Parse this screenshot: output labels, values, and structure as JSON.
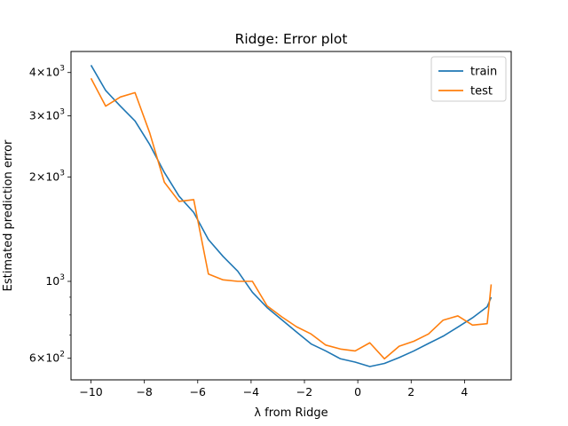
{
  "chart_data": {
    "type": "line",
    "title": "Ridge: Error plot",
    "xlabel": "λ from Ridge",
    "ylabel": "Estimated prediction error",
    "xlim": [
      -10.75,
      5.75
    ],
    "ylim": [
      520,
      4600
    ],
    "yscale": "log",
    "grid": false,
    "legend_position": "top-right",
    "x_ticks": [
      -10,
      -8,
      -6,
      -4,
      -2,
      0,
      2,
      4
    ],
    "x_tick_labels": [
      "−10",
      "−8",
      "−6",
      "−4",
      "−2",
      "0",
      "2",
      "4"
    ],
    "y_major_ticks": [
      {
        "value": 1000,
        "base": "10",
        "exp": "3",
        "coef": ""
      },
      {
        "value": 2000,
        "base": "10",
        "exp": "3",
        "coef": "2"
      },
      {
        "value": 3000,
        "base": "10",
        "exp": "3",
        "coef": "3"
      },
      {
        "value": 4000,
        "base": "10",
        "exp": "3",
        "coef": "4"
      },
      {
        "value": 600,
        "base": "10",
        "exp": "2",
        "coef": "6"
      }
    ],
    "y_minor_ticks": [
      700,
      800,
      900
    ],
    "x": [
      -10.0,
      -9.45,
      -8.9,
      -8.35,
      -7.8,
      -7.25,
      -6.7,
      -6.15,
      -5.6,
      -5.05,
      -4.5,
      -3.95,
      -3.4,
      -2.85,
      -2.3,
      -1.75,
      -1.2,
      -0.65,
      -0.1,
      0.45,
      1.0,
      1.55,
      2.1,
      2.65,
      3.2,
      3.75,
      4.3,
      4.85,
      5.0
    ],
    "series": [
      {
        "name": "train",
        "color": "#1f77b4",
        "values": [
          4200,
          3550,
          3200,
          2900,
          2480,
          2060,
          1760,
          1580,
          1320,
          1180,
          1070,
          930,
          840,
          775,
          715,
          660,
          630,
          598,
          585,
          568,
          580,
          603,
          630,
          662,
          695,
          738,
          785,
          845,
          900
        ]
      },
      {
        "name": "test",
        "color": "#ff7f0e",
        "values": [
          3850,
          3200,
          3400,
          3500,
          2680,
          1930,
          1700,
          1720,
          1050,
          1010,
          1000,
          1000,
          850,
          790,
          740,
          705,
          655,
          638,
          630,
          665,
          598,
          650,
          672,
          705,
          773,
          795,
          748,
          755,
          980
        ]
      }
    ]
  }
}
